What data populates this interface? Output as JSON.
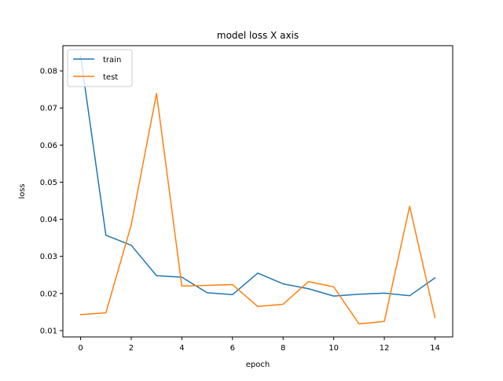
{
  "chart_data": {
    "type": "line",
    "title": "model loss X axis",
    "xlabel": "epoch",
    "ylabel": "loss",
    "x": [
      0,
      1,
      2,
      3,
      4,
      5,
      6,
      7,
      8,
      9,
      10,
      11,
      12,
      13,
      14
    ],
    "series": [
      {
        "name": "train",
        "color": "#1f77b4",
        "values": [
          0.084,
          0.0357,
          0.033,
          0.0248,
          0.0244,
          0.0202,
          0.0197,
          0.0255,
          0.0226,
          0.0213,
          0.0193,
          0.0198,
          0.0201,
          0.0194,
          0.0242
        ]
      },
      {
        "name": "test",
        "color": "#ff7f0e",
        "values": [
          0.0143,
          0.0148,
          0.0385,
          0.0739,
          0.022,
          0.0222,
          0.0224,
          0.0165,
          0.0171,
          0.0232,
          0.0218,
          0.0118,
          0.0125,
          0.0435,
          0.0135
        ]
      }
    ],
    "xlim": [
      -0.7,
      14.7
    ],
    "ylim": [
      0.0083,
      0.0868
    ],
    "xticks": [
      0,
      2,
      4,
      6,
      8,
      10,
      12,
      14
    ],
    "xtick_labels": [
      "0",
      "2",
      "4",
      "6",
      "8",
      "10",
      "12",
      "14"
    ],
    "yticks": [
      0.01,
      0.02,
      0.03,
      0.04,
      0.05,
      0.06,
      0.07,
      0.08
    ],
    "ytick_labels": [
      "0.01",
      "0.02",
      "0.03",
      "0.04",
      "0.05",
      "0.06",
      "0.07",
      "0.08"
    ],
    "grid": false,
    "legend_position": "top-left"
  }
}
